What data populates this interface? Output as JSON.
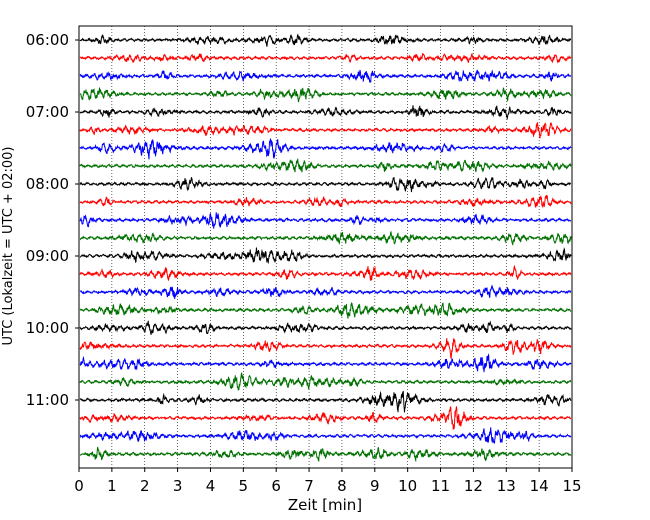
{
  "chart_data": {
    "type": "line",
    "title": "",
    "xlabel": "Zeit  [min]",
    "ylabel": "UTC (Lokalzeit = UTC + 02:00)",
    "xlim": [
      0,
      15
    ],
    "x_ticks": [
      "0",
      "1",
      "2",
      "3",
      "4",
      "5",
      "6",
      "7",
      "8",
      "9",
      "10",
      "11",
      "12",
      "13",
      "14",
      "15"
    ],
    "y_tick_labels": [
      "06:00",
      "07:00",
      "08:00",
      "09:00",
      "10:00",
      "11:00"
    ],
    "grid": "vertical-dotted",
    "trace_colors": [
      "#000000",
      "#ff0000",
      "#0000ff",
      "#007000"
    ],
    "trace_count": 24,
    "traces_per_hour": 4,
    "minutes_per_trace": 15
  }
}
